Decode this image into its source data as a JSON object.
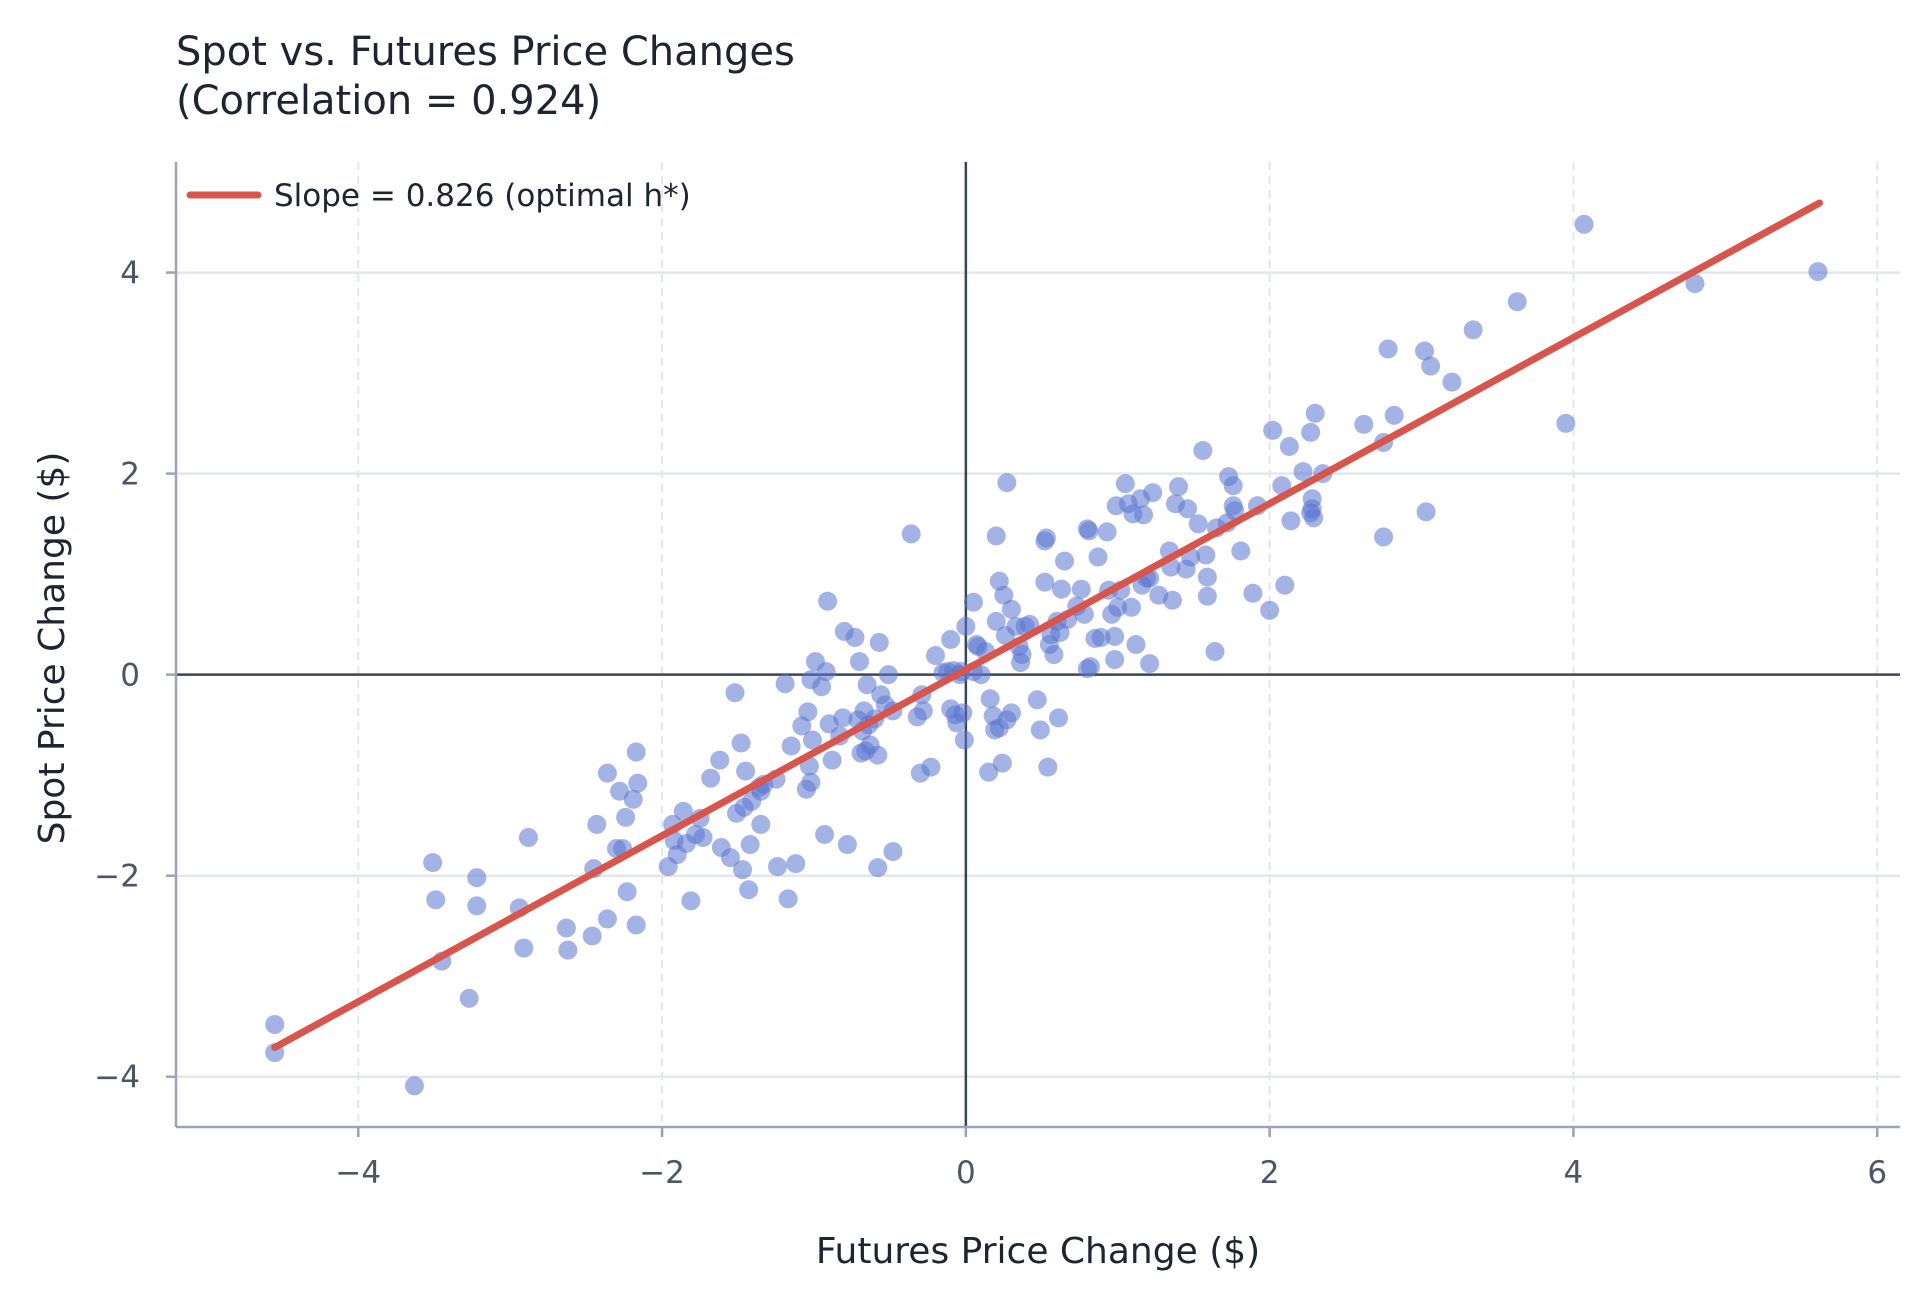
{
  "chart_data": {
    "type": "scatter",
    "title_line1": "Spot vs. Futures Price Changes",
    "title_line2": "(Correlation = 0.924)",
    "xlabel": "Futures Price Change ($)",
    "ylabel": "Spot Price Change ($)",
    "xlim": [
      -5.2,
      6.15
    ],
    "ylim": [
      -4.5,
      5.1
    ],
    "xticks": [
      -4,
      -2,
      0,
      2,
      4,
      6
    ],
    "yticks": [
      -4,
      -2,
      0,
      2,
      4
    ],
    "xtick_labels": [
      "−4",
      "−2",
      "0",
      "2",
      "4",
      "6"
    ],
    "ytick_labels": [
      "−4",
      "−2",
      "0",
      "2",
      "4"
    ],
    "grid": true,
    "zero_lines": true,
    "legend_position": "top-left",
    "colors": {
      "points": "#5a74d0",
      "fit_line": "#d9544a",
      "zero_line": "#3b4456",
      "grid": "#e3e7ed",
      "spine": "#9aa3b8"
    },
    "fit_line": {
      "label": "Slope = 0.826 (optimal h*)",
      "slope": 0.826,
      "intercept": 0.05,
      "x_range": [
        -4.55,
        5.62
      ]
    },
    "points": [
      [
        -4.55,
        -3.48
      ],
      [
        -4.55,
        -3.76
      ],
      [
        -3.63,
        -4.09
      ],
      [
        -3.51,
        -1.87
      ],
      [
        -3.49,
        -2.24
      ],
      [
        -3.45,
        -2.85
      ],
      [
        -3.27,
        -3.22
      ],
      [
        -3.22,
        -2.02
      ],
      [
        -3.22,
        -2.3
      ],
      [
        -2.94,
        -2.32
      ],
      [
        -2.91,
        -2.72
      ],
      [
        -2.88,
        -1.62
      ],
      [
        -2.63,
        -2.52
      ],
      [
        -2.62,
        -2.74
      ],
      [
        -2.46,
        -2.6
      ],
      [
        -2.45,
        -1.93
      ],
      [
        -2.43,
        -1.49
      ],
      [
        -2.36,
        -0.98
      ],
      [
        -2.36,
        -2.43
      ],
      [
        -2.3,
        -1.73
      ],
      [
        -2.28,
        -1.16
      ],
      [
        -2.26,
        -1.73
      ],
      [
        -2.24,
        -1.42
      ],
      [
        -2.23,
        -2.16
      ],
      [
        -2.19,
        -1.24
      ],
      [
        -2.17,
        -0.77
      ],
      [
        -2.17,
        -2.49
      ],
      [
        -2.16,
        -1.08
      ],
      [
        -1.96,
        -1.91
      ],
      [
        -1.93,
        -1.49
      ],
      [
        -1.92,
        -1.65
      ],
      [
        -1.9,
        -1.79
      ],
      [
        -1.86,
        -1.36
      ],
      [
        -1.84,
        -1.68
      ],
      [
        -1.81,
        -2.25
      ],
      [
        -1.78,
        -1.59
      ],
      [
        -1.75,
        -1.43
      ],
      [
        -1.73,
        -1.62
      ],
      [
        -1.68,
        -1.03
      ],
      [
        -1.62,
        -0.85
      ],
      [
        -1.61,
        -1.72
      ],
      [
        -1.55,
        -1.82
      ],
      [
        -1.52,
        -0.18
      ],
      [
        -1.51,
        -1.38
      ],
      [
        -1.48,
        -0.68
      ],
      [
        -1.47,
        -1.94
      ],
      [
        -1.46,
        -1.32
      ],
      [
        -1.45,
        -0.96
      ],
      [
        -1.43,
        -2.14
      ],
      [
        -1.42,
        -1.69
      ],
      [
        -1.41,
        -1.26
      ],
      [
        -1.36,
        -1.12
      ],
      [
        -1.35,
        -1.49
      ],
      [
        -1.35,
        -1.16
      ],
      [
        -1.33,
        -1.09
      ],
      [
        -1.25,
        -1.04
      ],
      [
        -1.24,
        -1.91
      ],
      [
        -1.19,
        -0.09
      ],
      [
        -1.17,
        -2.23
      ],
      [
        -1.15,
        -0.71
      ],
      [
        -1.12,
        -1.88
      ],
      [
        -1.08,
        -0.51
      ],
      [
        -1.05,
        -1.14
      ],
      [
        -1.04,
        -0.37
      ],
      [
        -1.03,
        -0.91
      ],
      [
        -1.02,
        -1.07
      ],
      [
        -1.02,
        -0.05
      ],
      [
        -1.01,
        -0.65
      ],
      [
        -0.99,
        0.13
      ],
      [
        -0.95,
        -0.12
      ],
      [
        -0.93,
        -1.59
      ],
      [
        -0.92,
        0.03
      ],
      [
        -0.91,
        0.73
      ],
      [
        -0.9,
        -0.49
      ],
      [
        -0.88,
        -0.85
      ],
      [
        -0.83,
        -0.61
      ],
      [
        -0.81,
        -0.43
      ],
      [
        -0.8,
        0.43
      ],
      [
        -0.78,
        -1.69
      ],
      [
        -0.73,
        0.37
      ],
      [
        -0.71,
        -0.45
      ],
      [
        -0.7,
        0.13
      ],
      [
        -0.69,
        -0.78
      ],
      [
        -0.68,
        -0.56
      ],
      [
        -0.67,
        -0.36
      ],
      [
        -0.66,
        -0.76
      ],
      [
        -0.65,
        -0.1
      ],
      [
        -0.64,
        -0.5
      ],
      [
        -0.63,
        -0.7
      ],
      [
        -0.6,
        -0.44
      ],
      [
        -0.58,
        -0.8
      ],
      [
        -0.58,
        -1.92
      ],
      [
        -0.57,
        0.32
      ],
      [
        -0.56,
        -0.2
      ],
      [
        -0.53,
        -0.3
      ],
      [
        -0.51,
        0.0
      ],
      [
        -0.48,
        -0.36
      ],
      [
        -0.48,
        -1.76
      ],
      [
        -0.36,
        1.4
      ],
      [
        -0.32,
        -0.42
      ],
      [
        -0.3,
        -0.98
      ],
      [
        -0.29,
        -0.2
      ],
      [
        -0.28,
        -0.36
      ],
      [
        -0.23,
        -0.92
      ],
      [
        -0.2,
        0.19
      ],
      [
        -0.15,
        0.02
      ],
      [
        -0.12,
        0.03
      ],
      [
        -0.1,
        -0.34
      ],
      [
        -0.1,
        0.35
      ],
      [
        -0.08,
        0.04
      ],
      [
        -0.07,
        -0.4
      ],
      [
        -0.06,
        -0.48
      ],
      [
        -0.04,
        0.0
      ],
      [
        -0.03,
        0.03
      ],
      [
        -0.02,
        -0.38
      ],
      [
        -0.01,
        -0.65
      ],
      [
        0.0,
        0.48
      ],
      [
        0.05,
        0.72
      ],
      [
        0.05,
        0.03
      ],
      [
        0.07,
        0.3
      ],
      [
        0.08,
        0.28
      ],
      [
        0.1,
        0.0
      ],
      [
        0.13,
        0.23
      ],
      [
        0.15,
        -0.97
      ],
      [
        0.16,
        -0.24
      ],
      [
        0.18,
        -0.41
      ],
      [
        0.19,
        -0.55
      ],
      [
        0.2,
        0.53
      ],
      [
        0.2,
        1.38
      ],
      [
        0.22,
        0.93
      ],
      [
        0.22,
        -0.53
      ],
      [
        0.24,
        -0.88
      ],
      [
        0.25,
        0.79
      ],
      [
        0.26,
        0.39
      ],
      [
        0.27,
        -0.45
      ],
      [
        0.27,
        1.91
      ],
      [
        0.3,
        0.65
      ],
      [
        0.3,
        -0.38
      ],
      [
        0.33,
        0.48
      ],
      [
        0.35,
        0.28
      ],
      [
        0.36,
        0.12
      ],
      [
        0.37,
        0.2
      ],
      [
        0.39,
        0.48
      ],
      [
        0.42,
        0.5
      ],
      [
        0.47,
        -0.25
      ],
      [
        0.49,
        -0.55
      ],
      [
        0.52,
        0.92
      ],
      [
        0.52,
        1.33
      ],
      [
        0.53,
        1.36
      ],
      [
        0.54,
        -0.92
      ],
      [
        0.55,
        0.3
      ],
      [
        0.56,
        0.4
      ],
      [
        0.58,
        0.2
      ],
      [
        0.6,
        0.53
      ],
      [
        0.61,
        -0.43
      ],
      [
        0.62,
        0.42
      ],
      [
        0.63,
        0.85
      ],
      [
        0.65,
        1.13
      ],
      [
        0.67,
        0.55
      ],
      [
        0.73,
        0.68
      ],
      [
        0.76,
        0.85
      ],
      [
        0.78,
        0.6
      ],
      [
        0.8,
        1.45
      ],
      [
        0.8,
        0.06
      ],
      [
        0.81,
        1.43
      ],
      [
        0.82,
        0.08
      ],
      [
        0.85,
        0.36
      ],
      [
        0.87,
        1.17
      ],
      [
        0.89,
        0.37
      ],
      [
        0.93,
        1.42
      ],
      [
        0.94,
        0.84
      ],
      [
        0.96,
        0.6
      ],
      [
        0.98,
        0.15
      ],
      [
        0.98,
        0.38
      ],
      [
        0.99,
        1.68
      ],
      [
        1.0,
        0.67
      ],
      [
        1.02,
        0.84
      ],
      [
        1.05,
        1.9
      ],
      [
        1.07,
        1.7
      ],
      [
        1.09,
        0.67
      ],
      [
        1.1,
        1.6
      ],
      [
        1.12,
        0.3
      ],
      [
        1.15,
        1.75
      ],
      [
        1.16,
        0.89
      ],
      [
        1.17,
        1.59
      ],
      [
        1.19,
        0.96
      ],
      [
        1.21,
        0.11
      ],
      [
        1.21,
        0.96
      ],
      [
        1.23,
        1.81
      ],
      [
        1.27,
        0.79
      ],
      [
        1.34,
        1.23
      ],
      [
        1.35,
        1.07
      ],
      [
        1.36,
        0.74
      ],
      [
        1.38,
        1.7
      ],
      [
        1.4,
        1.87
      ],
      [
        1.45,
        1.05
      ],
      [
        1.46,
        1.65
      ],
      [
        1.48,
        1.17
      ],
      [
        1.53,
        1.5
      ],
      [
        1.56,
        2.23
      ],
      [
        1.58,
        1.19
      ],
      [
        1.59,
        0.97
      ],
      [
        1.59,
        0.78
      ],
      [
        1.64,
        0.23
      ],
      [
        1.65,
        1.46
      ],
      [
        1.72,
        1.51
      ],
      [
        1.73,
        1.97
      ],
      [
        1.76,
        1.88
      ],
      [
        1.76,
        1.68
      ],
      [
        1.77,
        1.63
      ],
      [
        1.81,
        1.23
      ],
      [
        1.89,
        0.81
      ],
      [
        1.92,
        1.68
      ],
      [
        2.0,
        0.64
      ],
      [
        2.02,
        2.43
      ],
      [
        2.08,
        1.88
      ],
      [
        2.1,
        0.89
      ],
      [
        2.13,
        2.27
      ],
      [
        2.14,
        1.53
      ],
      [
        2.22,
        2.02
      ],
      [
        2.27,
        2.41
      ],
      [
        2.27,
        1.61
      ],
      [
        2.28,
        1.65
      ],
      [
        2.28,
        1.75
      ],
      [
        2.29,
        1.56
      ],
      [
        2.3,
        2.6
      ],
      [
        2.35,
        2.0
      ],
      [
        2.62,
        2.49
      ],
      [
        2.75,
        2.31
      ],
      [
        2.75,
        1.37
      ],
      [
        2.78,
        3.24
      ],
      [
        2.82,
        2.58
      ],
      [
        3.02,
        3.22
      ],
      [
        3.03,
        1.62
      ],
      [
        3.06,
        3.07
      ],
      [
        3.2,
        2.91
      ],
      [
        3.34,
        3.43
      ],
      [
        3.63,
        3.71
      ],
      [
        3.95,
        2.5
      ],
      [
        4.07,
        4.48
      ],
      [
        4.8,
        3.89
      ],
      [
        5.61,
        4.01
      ]
    ]
  }
}
